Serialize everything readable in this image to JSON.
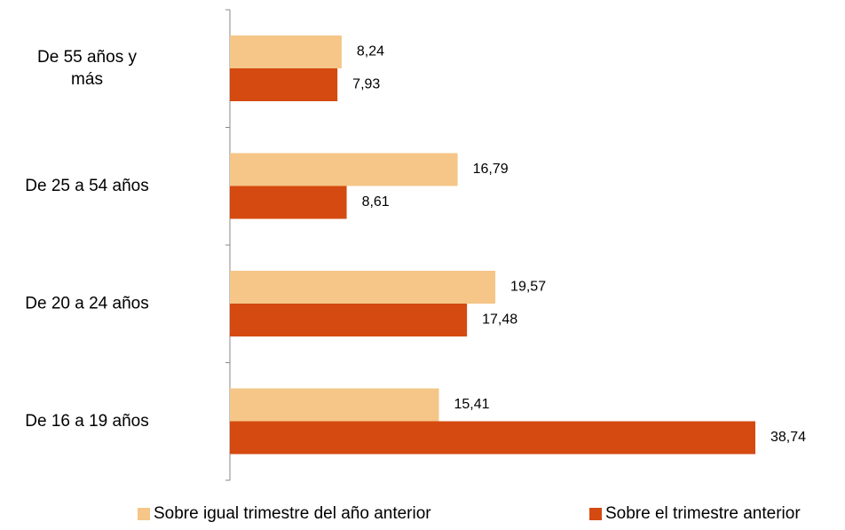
{
  "chart_data": {
    "type": "bar",
    "orientation": "horizontal",
    "categories": [
      "De 55 años y más",
      "De 25 a 54 años",
      "De 20 a 24 años",
      "De 16 a 19 años"
    ],
    "category_lines": [
      [
        "De 55 años y",
        "más"
      ],
      [
        "De 25 a 54 años"
      ],
      [
        "De 20 a 24 años"
      ],
      [
        "De 16 a 19 años"
      ]
    ],
    "series": [
      {
        "name": "Sobre igual trimestre del año anterior",
        "color": "#F5C687",
        "values": [
          8.24,
          16.79,
          19.57,
          15.41
        ],
        "labels": [
          "8,24",
          "16,79",
          "19,57",
          "15,41"
        ]
      },
      {
        "name": "Sobre el trimestre anterior",
        "color": "#D44A10",
        "values": [
          7.93,
          8.61,
          17.48,
          38.74
        ],
        "labels": [
          "7,93",
          "8,61",
          "17,48",
          "38,74"
        ]
      }
    ],
    "xlim": [
      0,
      38.74
    ],
    "grid": false,
    "legend_position": "bottom"
  }
}
